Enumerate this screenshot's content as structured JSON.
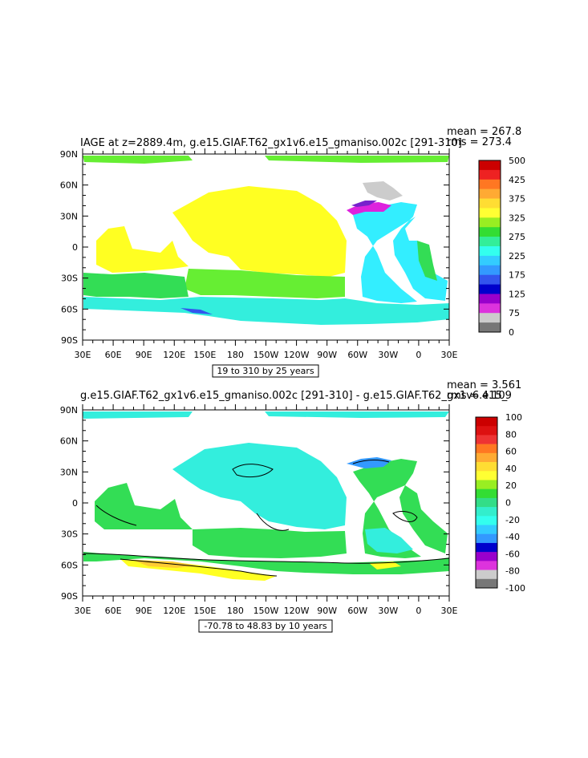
{
  "colors": {
    "land": "#ffffff",
    "frame": "#000000",
    "contour": "#000000"
  },
  "chart_data": [
    {
      "type": "heatmap",
      "title": "IAGE at z=2889.4m, g.e15.GIAF.T62_gx1v6.e15_gmaniso.002c  [291-310]",
      "stats": {
        "mean": "mean = 267.8",
        "rms": "rms = 273.4"
      },
      "x_ticks": [
        "30E",
        "60E",
        "90E",
        "120E",
        "150E",
        "180",
        "150W",
        "120W",
        "90W",
        "60W",
        "30W",
        "0",
        "30E"
      ],
      "y_ticks": [
        "90N",
        "60N",
        "30N",
        "0",
        "30S",
        "60S",
        "90S"
      ],
      "contour_info": "19 to 310 by 25 years",
      "colorbar": {
        "labels": [
          "500",
          "425",
          "375",
          "325",
          "275",
          "225",
          "175",
          "125",
          "75",
          "0"
        ],
        "colors": [
          "#cc0000",
          "#ee2222",
          "#ff7722",
          "#ffaa33",
          "#ffdd33",
          "#ffff33",
          "#99ee22",
          "#33dd33",
          "#33ee99",
          "#33ffee",
          "#33ccff",
          "#3399ff",
          "#3355ee",
          "#0000cc",
          "#9900cc",
          "#dd33dd",
          "#cccccc",
          "#777777"
        ]
      },
      "regions": [
        {
          "name": "arctic-ocean",
          "color": "#66ee33"
        },
        {
          "name": "north-pacific-yellow",
          "color": "#ffff22"
        },
        {
          "name": "indian-ocean-yellow",
          "color": "#ffff22"
        },
        {
          "name": "south-pacific-green",
          "color": "#66ee33"
        },
        {
          "name": "southern-ocean-green",
          "color": "#33dd55"
        },
        {
          "name": "southern-ocean-cyan",
          "color": "#33eedd"
        },
        {
          "name": "atlantic-cyan",
          "color": "#33eeff"
        },
        {
          "name": "nordic-seas-gray",
          "color": "#cccccc"
        },
        {
          "name": "labrador-magenta",
          "color": "#dd22dd"
        },
        {
          "name": "labrador-purple",
          "color": "#7722cc"
        },
        {
          "name": "east-atlantic-green",
          "color": "#33dd55"
        }
      ]
    },
    {
      "type": "heatmap",
      "title": "g.e15.GIAF.T62_gx1v6.e15_gmaniso.002c  [291-310]  - g.e15.GIAF.T62_gx1v6.e15_",
      "stats": {
        "mean": "mean = 3.561",
        "rms": "rms = 4.109"
      },
      "x_ticks": [
        "30E",
        "60E",
        "90E",
        "120E",
        "150E",
        "180",
        "150W",
        "120W",
        "90W",
        "60W",
        "30W",
        "0",
        "30E"
      ],
      "y_ticks": [
        "90N",
        "60N",
        "30N",
        "0",
        "30S",
        "60S",
        "90S"
      ],
      "contour_info": "-70.78 to 48.83 by 10 years",
      "colorbar": {
        "labels": [
          "100",
          "80",
          "60",
          "40",
          "20",
          "0",
          "-20",
          "-40",
          "-60",
          "-80",
          "-100"
        ],
        "colors": [
          "#cc0000",
          "#dd1111",
          "#ee3333",
          "#ff7722",
          "#ffaa33",
          "#ffdd33",
          "#ffff33",
          "#99ee22",
          "#33dd33",
          "#33dd88",
          "#33eecc",
          "#33ffee",
          "#33ccff",
          "#3399ff",
          "#0000cc",
          "#9900cc",
          "#dd33dd",
          "#cccccc",
          "#777777"
        ]
      },
      "regions": [
        {
          "name": "arctic-ocean",
          "color": "#33eedd"
        },
        {
          "name": "pacific-cyan",
          "color": "#33eedd"
        },
        {
          "name": "indian-green",
          "color": "#33dd55"
        },
        {
          "name": "south-pacific-green",
          "color": "#33dd55"
        },
        {
          "name": "southern-ocean-yellow",
          "color": "#ffff22"
        },
        {
          "name": "southern-ocean-orange",
          "color": "#ffcc33"
        },
        {
          "name": "atlantic-green",
          "color": "#33dd55"
        },
        {
          "name": "atlantic-cyan",
          "color": "#33eedd"
        },
        {
          "name": "north-atlantic-blue",
          "color": "#3399ff"
        }
      ]
    }
  ]
}
